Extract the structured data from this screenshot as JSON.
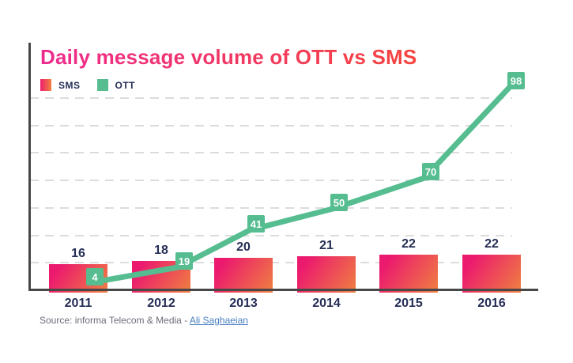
{
  "title": "Daily message volume of OTT vs SMS",
  "legend": {
    "items": [
      {
        "label": "SMS",
        "swatch": "sms-gradient-swatch"
      },
      {
        "label": "OTT",
        "swatch": "ott-green-swatch"
      }
    ]
  },
  "source": {
    "prefix": "Source: informa Telecom & Media - ",
    "link": "Ali Saghaeian"
  },
  "colors": {
    "bar_gradient_start": "#ec1a6e",
    "bar_gradient_end": "#ef8040",
    "title_gradient_start": "#ed2b8e",
    "title_gradient_end": "#f5443e",
    "line_green": "#55bd90",
    "label_navy": "#252e56",
    "axis_gray": "#474747",
    "grid_gray": "#dcdcdc",
    "source_gray": "#6d6d7a",
    "link_blue": "#4a80c2"
  },
  "chart_data": {
    "type": "combo",
    "categories": [
      "2011",
      "2012",
      "2013",
      "2014",
      "2015",
      "2016"
    ],
    "series": [
      {
        "name": "SMS",
        "type": "bar",
        "values": [
          16,
          18,
          20,
          21,
          22,
          22
        ]
      },
      {
        "name": "OTT",
        "type": "line",
        "values": [
          4,
          19,
          41,
          50,
          70,
          98
        ]
      }
    ],
    "title": "Daily message volume of OTT vs SMS",
    "xlabel": "",
    "ylabel": "",
    "value_labels": "shown",
    "grid": "horizontal-dashed",
    "legend_position": "top-left",
    "y_axis_tick_labels": "none"
  }
}
